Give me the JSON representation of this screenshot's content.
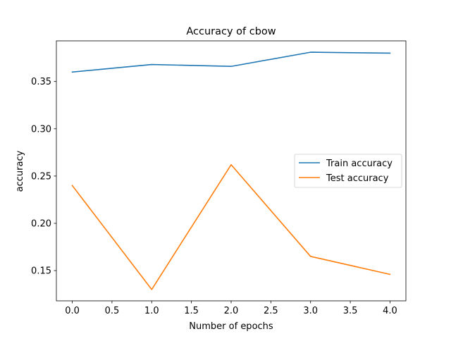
{
  "chart_data": {
    "type": "line",
    "title": "Accuracy of cbow",
    "xlabel": "Number of epochs",
    "ylabel": "accuracy",
    "x": [
      0,
      1,
      2,
      3,
      4
    ],
    "series": [
      {
        "name": "Train accuracy",
        "color": "#1f77b4",
        "values": [
          0.36,
          0.368,
          0.366,
          0.381,
          0.38
        ]
      },
      {
        "name": "Test accuracy",
        "color": "#ff7f0e",
        "values": [
          0.24,
          0.13,
          0.262,
          0.165,
          0.146
        ]
      }
    ],
    "xlim": [
      -0.2,
      4.2
    ],
    "ylim": [
      0.118,
      0.393
    ],
    "xticks": [
      0.0,
      0.5,
      1.0,
      1.5,
      2.0,
      2.5,
      3.0,
      3.5,
      4.0
    ],
    "xtick_labels": [
      "0.0",
      "0.5",
      "1.0",
      "1.5",
      "2.0",
      "2.5",
      "3.0",
      "3.5",
      "4.0"
    ],
    "yticks": [
      0.15,
      0.2,
      0.25,
      0.3,
      0.35
    ],
    "ytick_labels": [
      "0.15",
      "0.20",
      "0.25",
      "0.30",
      "0.35"
    ],
    "grid": false,
    "legend_position": "center-right"
  }
}
